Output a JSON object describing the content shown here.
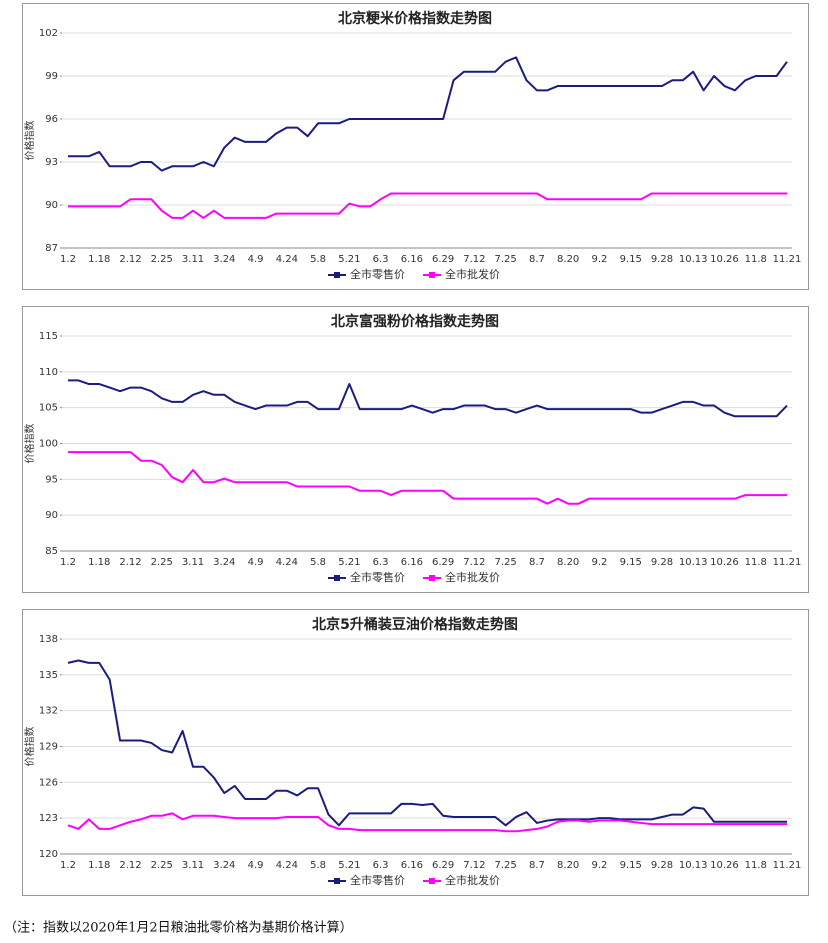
{
  "chart_data": [
    {
      "type": "line",
      "title": "北京粳米价格指数走势图",
      "y_label": "价格指数",
      "grid": true,
      "legend": "bottom",
      "categories": [
        "1.2",
        null,
        null,
        "1.18",
        null,
        null,
        "2.12",
        null,
        null,
        "2.25",
        null,
        null,
        "3.11",
        null,
        null,
        "3.24",
        null,
        null,
        "4.9",
        null,
        null,
        "4.24",
        null,
        null,
        "5.8",
        null,
        null,
        "5.21",
        null,
        null,
        "6.3",
        null,
        null,
        "6.16",
        null,
        null,
        "6.29",
        null,
        null,
        "7.12",
        null,
        null,
        "7.25",
        null,
        null,
        "8.7",
        null,
        null,
        "8.20",
        null,
        null,
        "9.2",
        null,
        null,
        "9.15",
        null,
        null,
        "9.28",
        null,
        null,
        "10.13",
        null,
        null,
        "10.26",
        null,
        null,
        "11.8",
        null,
        null,
        "11.21"
      ],
      "ylim": [
        87,
        102
      ],
      "yticks": [
        87,
        90,
        93,
        96,
        99,
        102
      ],
      "series": [
        {
          "name": "全市零售价",
          "color": "#1c1c80",
          "values": [
            93.4,
            93.4,
            93.4,
            93.7,
            92.7,
            92.7,
            92.7,
            93.0,
            93.0,
            92.4,
            92.7,
            92.7,
            92.7,
            93.0,
            92.7,
            94.0,
            94.7,
            94.4,
            94.4,
            94.4,
            95.0,
            95.4,
            95.4,
            94.8,
            95.7,
            95.7,
            95.7,
            96.0,
            96.0,
            96.0,
            96.0,
            96.0,
            96.0,
            96.0,
            96.0,
            96.0,
            96.0,
            98.7,
            99.3,
            99.3,
            99.3,
            99.3,
            100.0,
            100.3,
            98.7,
            98.0,
            98.0,
            98.3,
            98.3,
            98.3,
            98.3,
            98.3,
            98.3,
            98.3,
            98.3,
            98.3,
            98.3,
            98.3,
            98.7,
            98.7,
            99.3,
            98.0,
            99.0,
            98.3,
            98.0,
            98.7,
            99.0,
            99.0,
            99.0,
            100.0
          ]
        },
        {
          "name": "全市批发价",
          "color": "#ff00ff",
          "values": [
            89.9,
            89.9,
            89.9,
            89.9,
            89.9,
            89.9,
            90.4,
            90.4,
            90.4,
            89.6,
            89.1,
            89.1,
            89.6,
            89.1,
            89.6,
            89.1,
            89.1,
            89.1,
            89.1,
            89.1,
            89.4,
            89.4,
            89.4,
            89.4,
            89.4,
            89.4,
            89.4,
            90.1,
            89.9,
            89.9,
            90.4,
            90.8,
            90.8,
            90.8,
            90.8,
            90.8,
            90.8,
            90.8,
            90.8,
            90.8,
            90.8,
            90.8,
            90.8,
            90.8,
            90.8,
            90.8,
            90.4,
            90.4,
            90.4,
            90.4,
            90.4,
            90.4,
            90.4,
            90.4,
            90.4,
            90.4,
            90.8,
            90.8,
            90.8,
            90.8,
            90.8,
            90.8,
            90.8,
            90.8,
            90.8,
            90.8,
            90.8,
            90.8,
            90.8,
            90.8
          ]
        }
      ]
    },
    {
      "type": "line",
      "title": "北京富强粉价格指数走势图",
      "y_label": "价格指数",
      "grid": true,
      "legend": "bottom",
      "categories": [
        "1.2",
        null,
        null,
        "1.18",
        null,
        null,
        "2.12",
        null,
        null,
        "2.25",
        null,
        null,
        "3.11",
        null,
        null,
        "3.24",
        null,
        null,
        "4.9",
        null,
        null,
        "4.24",
        null,
        null,
        "5.8",
        null,
        null,
        "5.21",
        null,
        null,
        "6.3",
        null,
        null,
        "6.16",
        null,
        null,
        "6.29",
        null,
        null,
        "7.12",
        null,
        null,
        "7.25",
        null,
        null,
        "8.7",
        null,
        null,
        "8.20",
        null,
        null,
        "9.2",
        null,
        null,
        "9.15",
        null,
        null,
        "9.28",
        null,
        null,
        "10.13",
        null,
        null,
        "10.26",
        null,
        null,
        "11.8",
        null,
        null,
        "11.21"
      ],
      "ylim": [
        85,
        115
      ],
      "yticks": [
        85,
        90,
        95,
        100,
        105,
        110,
        115
      ],
      "series": [
        {
          "name": "全市零售价",
          "color": "#1c1c80",
          "values": [
            108.8,
            108.8,
            108.3,
            108.3,
            107.8,
            107.3,
            107.8,
            107.8,
            107.3,
            106.3,
            105.8,
            105.8,
            106.8,
            107.3,
            106.8,
            106.8,
            105.8,
            105.3,
            104.8,
            105.3,
            105.3,
            105.3,
            105.8,
            105.8,
            104.8,
            104.8,
            104.8,
            108.3,
            104.8,
            104.8,
            104.8,
            104.8,
            104.8,
            105.3,
            104.8,
            104.3,
            104.8,
            104.8,
            105.3,
            105.3,
            105.3,
            104.8,
            104.8,
            104.3,
            104.8,
            105.3,
            104.8,
            104.8,
            104.8,
            104.8,
            104.8,
            104.8,
            104.8,
            104.8,
            104.8,
            104.3,
            104.3,
            104.8,
            105.3,
            105.8,
            105.8,
            105.3,
            105.3,
            104.3,
            103.8,
            103.8,
            103.8,
            103.8,
            103.8,
            105.3
          ]
        },
        {
          "name": "全市批发价",
          "color": "#ff00ff",
          "values": [
            98.8,
            98.8,
            98.8,
            98.8,
            98.8,
            98.8,
            98.8,
            97.6,
            97.6,
            97.0,
            95.3,
            94.6,
            96.3,
            94.6,
            94.6,
            95.1,
            94.6,
            94.6,
            94.6,
            94.6,
            94.6,
            94.6,
            94.0,
            94.0,
            94.0,
            94.0,
            94.0,
            94.0,
            93.4,
            93.4,
            93.4,
            92.8,
            93.4,
            93.4,
            93.4,
            93.4,
            93.4,
            92.3,
            92.3,
            92.3,
            92.3,
            92.3,
            92.3,
            92.3,
            92.3,
            92.3,
            91.6,
            92.3,
            91.6,
            91.6,
            92.3,
            92.3,
            92.3,
            92.3,
            92.3,
            92.3,
            92.3,
            92.3,
            92.3,
            92.3,
            92.3,
            92.3,
            92.3,
            92.3,
            92.3,
            92.8,
            92.8,
            92.8,
            92.8,
            92.8
          ]
        }
      ]
    },
    {
      "type": "line",
      "title": "北京5升桶装豆油价格指数走势图",
      "y_label": "价格指数",
      "grid": true,
      "legend": "bottom",
      "categories": [
        "1.2",
        null,
        null,
        "1.18",
        null,
        null,
        "2.12",
        null,
        null,
        "2.25",
        null,
        null,
        "3.11",
        null,
        null,
        "3.24",
        null,
        null,
        "4.9",
        null,
        null,
        "4.24",
        null,
        null,
        "5.8",
        null,
        null,
        "5.21",
        null,
        null,
        "6.3",
        null,
        null,
        "6.16",
        null,
        null,
        "6.29",
        null,
        null,
        "7.12",
        null,
        null,
        "7.25",
        null,
        null,
        "8.7",
        null,
        null,
        "8.20",
        null,
        null,
        "9.2",
        null,
        null,
        "9.15",
        null,
        null,
        "9.28",
        null,
        null,
        "10.13",
        null,
        null,
        "10.26",
        null,
        null,
        "11.8",
        null,
        null,
        "11.21"
      ],
      "ylim": [
        120,
        138
      ],
      "yticks": [
        120,
        123,
        126,
        129,
        132,
        135,
        138
      ],
      "series": [
        {
          "name": "全市零售价",
          "color": "#1c1c80",
          "values": [
            136.0,
            136.2,
            136.0,
            136.0,
            134.6,
            129.5,
            129.5,
            129.5,
            129.3,
            128.7,
            128.5,
            130.3,
            127.3,
            127.3,
            126.4,
            125.1,
            125.7,
            124.6,
            124.6,
            124.6,
            125.3,
            125.3,
            124.9,
            125.5,
            125.5,
            123.3,
            122.4,
            123.4,
            123.4,
            123.4,
            123.4,
            123.4,
            124.2,
            124.2,
            124.1,
            124.2,
            123.2,
            123.1,
            123.1,
            123.1,
            123.1,
            123.1,
            122.4,
            123.1,
            123.5,
            122.6,
            122.8,
            122.9,
            122.9,
            122.9,
            122.9,
            123.0,
            123.0,
            122.9,
            122.9,
            122.9,
            122.9,
            123.1,
            123.3,
            123.3,
            123.9,
            123.8,
            122.7,
            122.7,
            122.7,
            122.7,
            122.7,
            122.7,
            122.7,
            122.7
          ]
        },
        {
          "name": "全市批发价",
          "color": "#ff00ff",
          "values": [
            122.4,
            122.1,
            122.9,
            122.1,
            122.1,
            122.4,
            122.7,
            122.9,
            123.2,
            123.2,
            123.4,
            122.9,
            123.2,
            123.2,
            123.2,
            123.1,
            123.0,
            123.0,
            123.0,
            123.0,
            123.0,
            123.1,
            123.1,
            123.1,
            123.1,
            122.4,
            122.1,
            122.1,
            122.0,
            122.0,
            122.0,
            122.0,
            122.0,
            122.0,
            122.0,
            122.0,
            122.0,
            122.0,
            122.0,
            122.0,
            122.0,
            122.0,
            121.9,
            121.9,
            122.0,
            122.1,
            122.3,
            122.7,
            122.8,
            122.8,
            122.7,
            122.8,
            122.8,
            122.8,
            122.7,
            122.6,
            122.5,
            122.5,
            122.5,
            122.5,
            122.5,
            122.5,
            122.5,
            122.5,
            122.5,
            122.5,
            122.5,
            122.5,
            122.5,
            122.5
          ]
        }
      ]
    }
  ],
  "note": "（注：指数以2020年1月2日粮油批零价格为基期价格计算）"
}
